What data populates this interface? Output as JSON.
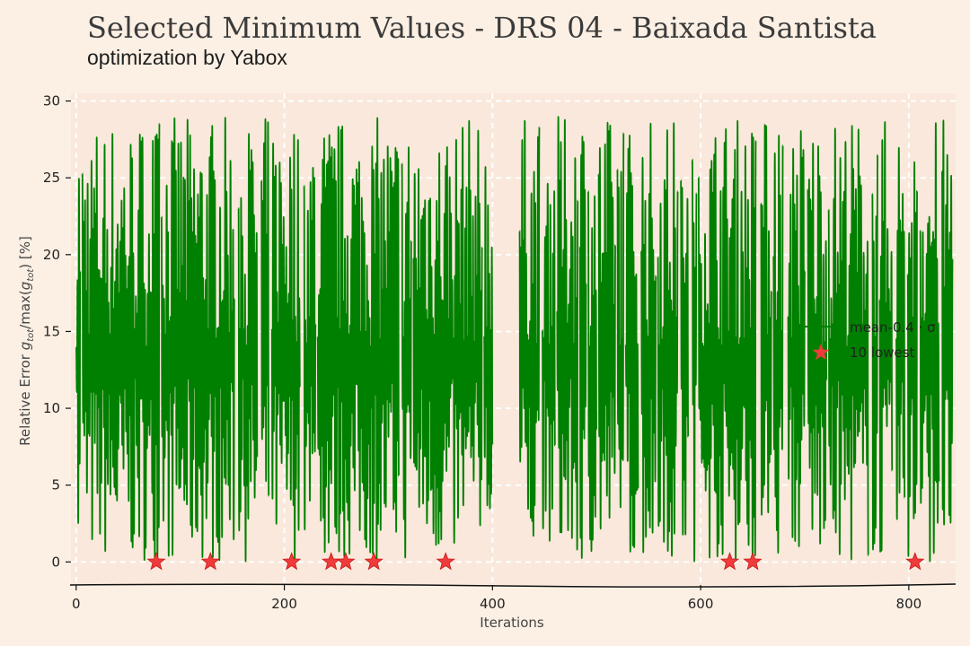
{
  "title": "Selected Minimum Values - DRS 04 - Baixada Santista",
  "subtitle": "optimization by Yabox",
  "chart_data": {
    "type": "line",
    "xlabel": "Iterations",
    "ylabel": "Relative Error g_tot/max(g_tot) [%]",
    "ylabel_parts": {
      "prefix": "Relative Error ",
      "g": "g",
      "sub1": "tot",
      "mid": "/max(",
      "g2": "g",
      "sub2": "tot",
      "suffix": ") [%]"
    },
    "xlim": [
      -5,
      845
    ],
    "ylim": [
      -1.5,
      30.5
    ],
    "xticks": [
      0,
      200,
      400,
      600,
      800
    ],
    "yticks": [
      0,
      5,
      10,
      15,
      20,
      25,
      30
    ],
    "grid": true,
    "legend_position": "center-right",
    "series": [
      {
        "name": "mean-0.4 · σ",
        "color": "#008000",
        "segments": [
          [
            0,
            4
          ],
          [
            6,
            80
          ],
          [
            82,
            152
          ],
          [
            156,
            174
          ],
          [
            178,
            185
          ],
          [
            188,
            215
          ],
          [
            219,
            230
          ],
          [
            232,
            310
          ],
          [
            313,
            322
          ],
          [
            324,
            390
          ],
          [
            392,
            400
          ],
          [
            426,
            445
          ],
          [
            448,
            460
          ],
          [
            462,
            482
          ],
          [
            484,
            490
          ],
          [
            492,
            500
          ],
          [
            502,
            518
          ],
          [
            520,
            526
          ],
          [
            528,
            540
          ],
          [
            543,
            557
          ],
          [
            559,
            578
          ],
          [
            581,
            588
          ],
          [
            592,
            596
          ],
          [
            598,
            653
          ],
          [
            658,
            668
          ],
          [
            670,
            679
          ],
          [
            684,
            700
          ],
          [
            703,
            721
          ],
          [
            723,
            761
          ],
          [
            765,
            770
          ],
          [
            772,
            784
          ],
          [
            788,
            796
          ],
          [
            799,
            808
          ],
          [
            811,
            829
          ],
          [
            832,
            842
          ]
        ]
      },
      {
        "name": "10 lowest",
        "color": "#ef3b3b",
        "marker": "star",
        "x": [
          77,
          129,
          207,
          245,
          259,
          286,
          355,
          628,
          650,
          806
        ],
        "y": [
          0,
          0,
          0,
          0,
          0,
          0,
          0,
          0,
          0,
          0
        ]
      }
    ]
  },
  "colors": {
    "background": "#fcf0e4",
    "plot_area": "#f9e8db",
    "grid": "#ffffff",
    "line": "#008000",
    "marker": "#ef3b3b"
  }
}
